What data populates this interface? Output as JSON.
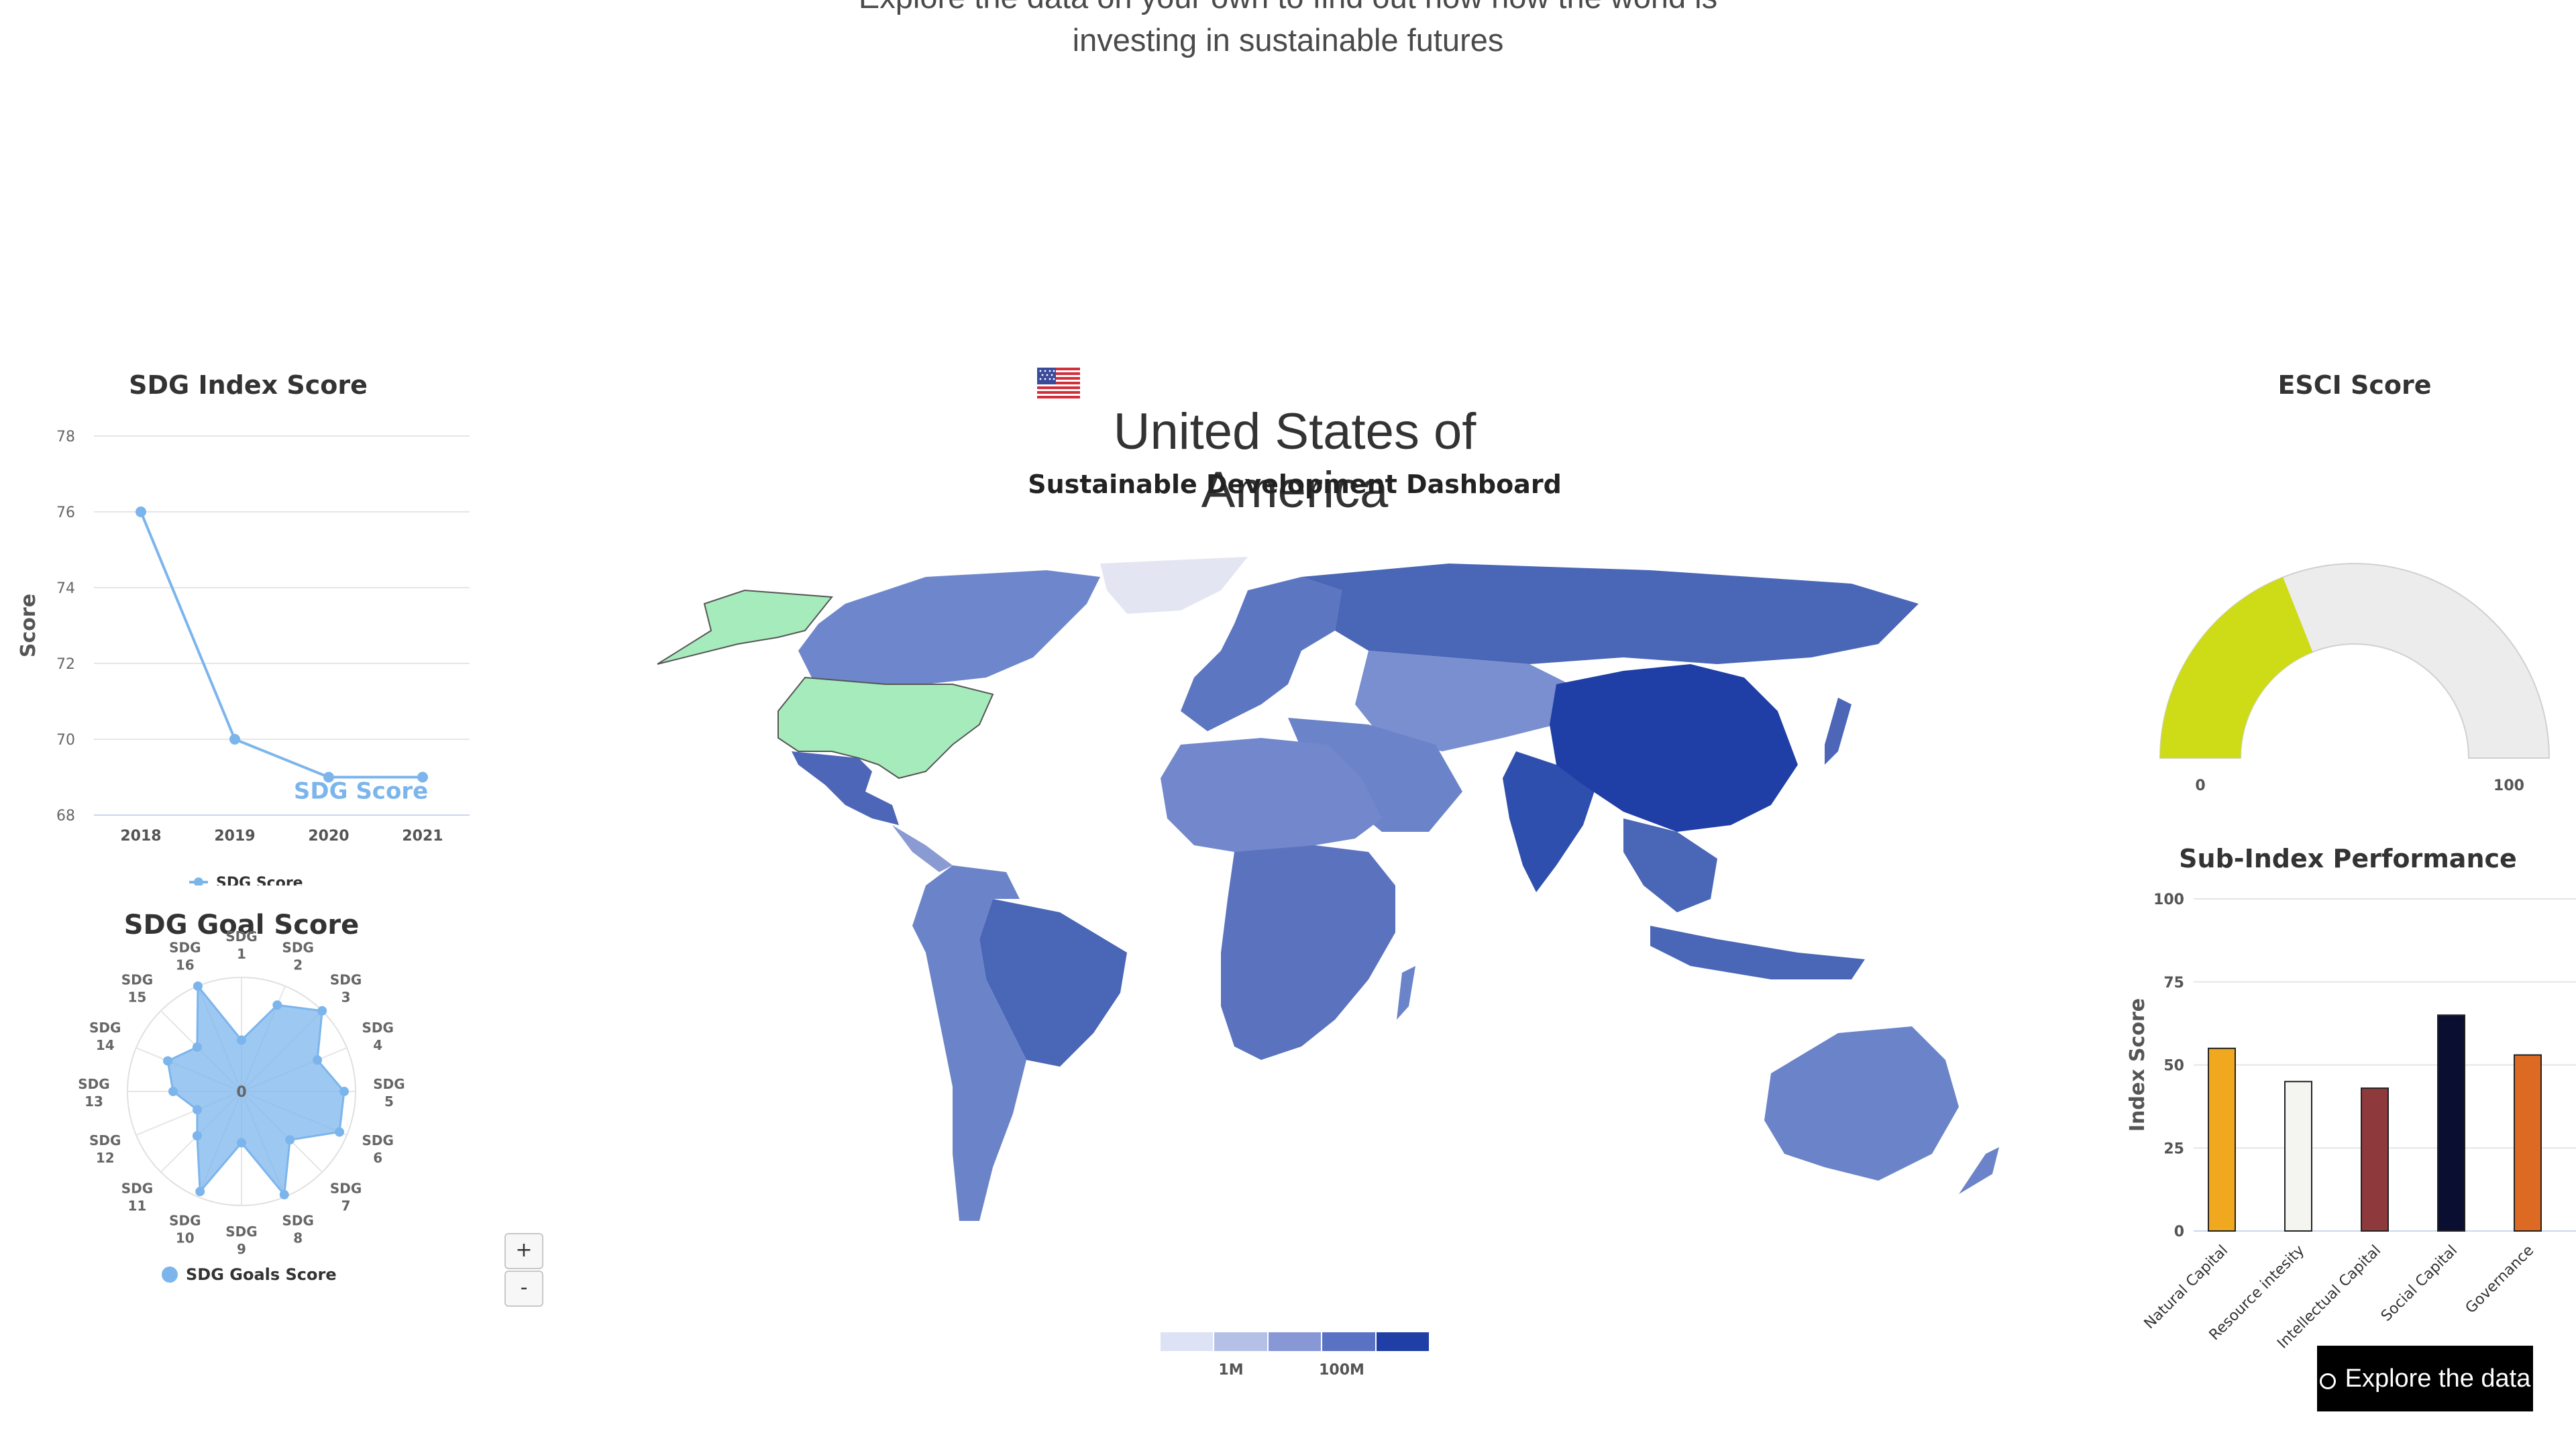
{
  "intro": {
    "line1": "Explore the data on your own to find out how how the world is",
    "line2": "investing in sustainable futures"
  },
  "country": {
    "name": "United States of America",
    "subtitle": "Sustainable Development Dashboard",
    "flag_icon": "us-flag-icon"
  },
  "sdg_index": {
    "chart_data": {
      "type": "line",
      "title": "SDG Index Score",
      "ylabel": "Score",
      "xlabel": "",
      "x": [
        "2018",
        "2019",
        "2020",
        "2021"
      ],
      "series": [
        {
          "name": "SDG Score",
          "values": [
            76,
            70,
            69,
            69
          ],
          "color": "#7cb5ec"
        }
      ],
      "ylim": [
        68,
        78
      ],
      "yticks": [
        68,
        70,
        72,
        74,
        76,
        78
      ],
      "annotation": "SDG Score",
      "legend": "bottom",
      "grid": true
    }
  },
  "sdg_goal": {
    "chart_data": {
      "type": "radar",
      "title": "SDG Goal Score",
      "categories": [
        "SDG 1",
        "SDG 2",
        "SDG 3",
        "SDG 4",
        "SDG 5",
        "SDG 6",
        "SDG 7",
        "SDG 8",
        "SDG 9",
        "SDG 10",
        "SDG 11",
        "SDG 12",
        "SDG 13",
        "SDG 14",
        "SDG 15",
        "SDG 16"
      ],
      "series": [
        {
          "name": "SDG Goals Score",
          "values": [
            45,
            82,
            100,
            72,
            90,
            93,
            60,
            98,
            45,
            95,
            55,
            42,
            60,
            70,
            55,
            100
          ],
          "color": "#7cb5ec"
        }
      ],
      "center_label": "0",
      "range": [
        0,
        100
      ],
      "legend": "bottom"
    }
  },
  "map": {
    "legend": {
      "ticks": [
        "1M",
        "100M"
      ],
      "colors": [
        "#dde3f4",
        "#b5c0e6",
        "#8898d6",
        "#5a72c3",
        "#1f3fa6"
      ]
    },
    "zoom_in": "+",
    "zoom_out": "-",
    "highlight_color": "#a6ebbb"
  },
  "esci": {
    "chart_data": {
      "type": "gauge",
      "title": "ESCI Score",
      "value": 38,
      "min": 0,
      "max": 100,
      "min_label": "0",
      "max_label": "100",
      "color": "#cddc17"
    }
  },
  "subindex": {
    "chart_data": {
      "type": "bar",
      "title": "Sub-Index Performance",
      "ylabel": "Index Score",
      "categories": [
        "Natural Capital",
        "Resource intesity",
        "Intellectual Capital",
        "Social Capital",
        "Governance"
      ],
      "values": [
        55,
        45,
        43,
        65,
        53
      ],
      "colors": [
        "#f0a81f",
        "#f4f4f1",
        "#8e3a3d",
        "#0a0f31",
        "#dd6a23"
      ],
      "ylim": [
        0,
        100
      ],
      "yticks": [
        0,
        25,
        50,
        75,
        100
      ],
      "grid": true
    }
  },
  "cta": {
    "label": "Explore the data",
    "icon": "compass-icon"
  }
}
